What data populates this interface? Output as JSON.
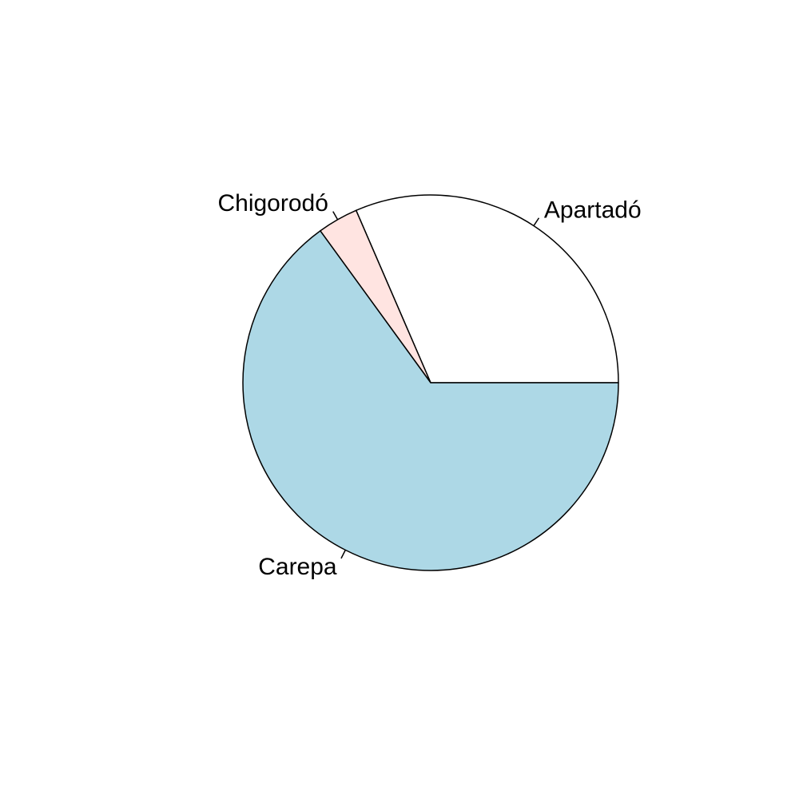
{
  "chart_data": {
    "type": "pie",
    "title": "",
    "labels": [
      "Apartadó",
      "Chigorodó",
      "Carepa"
    ],
    "values": [
      31.5,
      3.5,
      65.0
    ],
    "colors": [
      "#FFFFFF",
      "#FFE4E1",
      "#ADD8E6"
    ],
    "start_angle_deg": 0,
    "direction": "counterclockwise",
    "legend": "none"
  }
}
